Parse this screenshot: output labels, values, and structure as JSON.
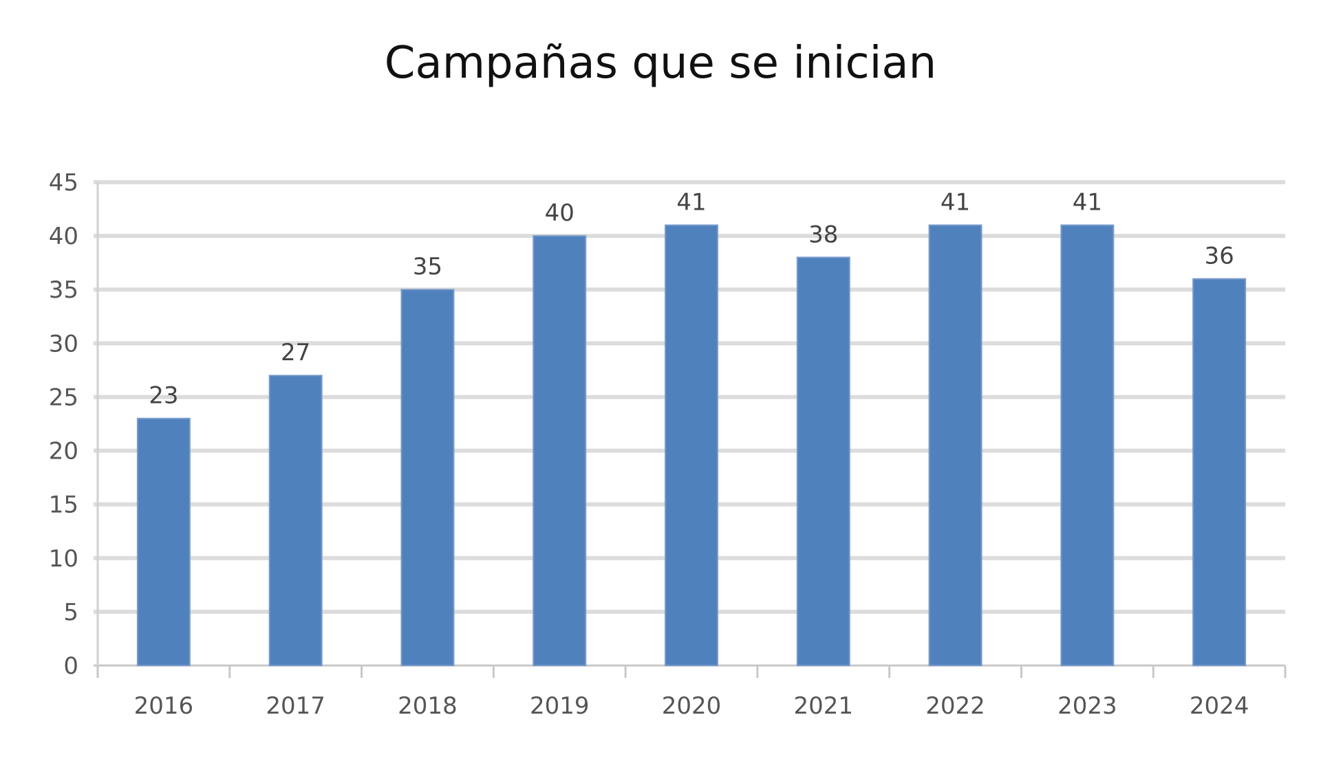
{
  "chart_data": {
    "type": "bar",
    "title": "Campañas que se inician",
    "categories": [
      "2016",
      "2017",
      "2018",
      "2019",
      "2020",
      "2021",
      "2022",
      "2023",
      "2024"
    ],
    "values": [
      23,
      27,
      35,
      40,
      41,
      38,
      41,
      41,
      36
    ],
    "xlabel": "",
    "ylabel": "",
    "ylim": [
      0,
      45
    ],
    "yticks": [
      0,
      5,
      10,
      15,
      20,
      25,
      30,
      35,
      40,
      45
    ],
    "grid": true,
    "data_labels": true,
    "bar_color": "#4f81bd",
    "legend": "none"
  }
}
